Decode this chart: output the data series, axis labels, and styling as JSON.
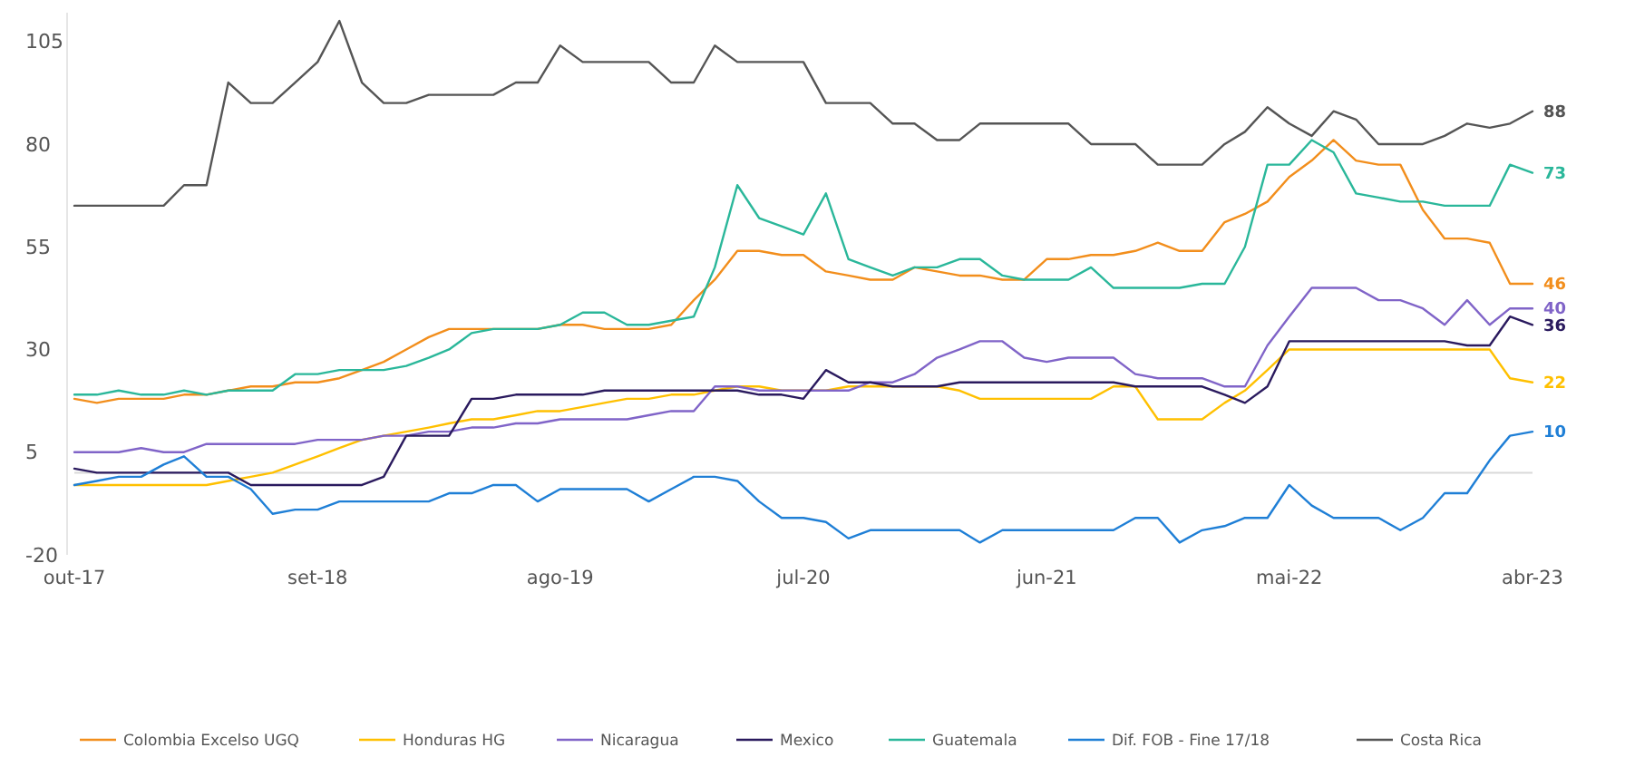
{
  "chart_data": {
    "type": "line",
    "x": [
      "2017-10",
      "2017-11",
      "2017-12",
      "2018-01",
      "2018-02",
      "2018-03",
      "2018-04",
      "2018-05",
      "2018-06",
      "2018-07",
      "2018-08",
      "2018-09",
      "2018-10",
      "2018-11",
      "2018-12",
      "2019-01",
      "2019-02",
      "2019-03",
      "2019-04",
      "2019-05",
      "2019-06",
      "2019-07",
      "2019-08",
      "2019-09",
      "2019-10",
      "2019-11",
      "2019-12",
      "2020-01",
      "2020-02",
      "2020-03",
      "2020-04",
      "2020-05",
      "2020-06",
      "2020-07",
      "2020-08",
      "2020-09",
      "2020-10",
      "2020-11",
      "2020-12",
      "2021-01",
      "2021-02",
      "2021-03",
      "2021-04",
      "2021-05",
      "2021-06",
      "2021-07",
      "2021-08",
      "2021-09",
      "2021-10",
      "2021-11",
      "2021-12",
      "2022-01",
      "2022-02",
      "2022-03",
      "2022-04",
      "2022-05",
      "2022-06",
      "2022-07",
      "2022-08",
      "2022-09",
      "2022-10",
      "2022-11",
      "2022-12",
      "2023-01",
      "2023-02",
      "2023-03",
      "2023-04"
    ],
    "xlim": [
      "2017-10",
      "2023-04"
    ],
    "xticks": [
      {
        "value": "2017-10",
        "label": "out-17"
      },
      {
        "value": "2018-09",
        "label": "set-18"
      },
      {
        "value": "2019-08",
        "label": "ago-19"
      },
      {
        "value": "2020-07",
        "label": "jul-20"
      },
      {
        "value": "2021-06",
        "label": "jun-21"
      },
      {
        "value": "2022-05",
        "label": "mai-22"
      },
      {
        "value": "2023-04",
        "label": "abr-23"
      }
    ],
    "ylim": [
      -20,
      112
    ],
    "yticks": [
      -20,
      5,
      30,
      55,
      80,
      105
    ],
    "ref_lines": [
      {
        "axis": "y",
        "value": 0,
        "color": "#d9d9d9"
      }
    ],
    "legend": "bottom",
    "grid": false,
    "series": [
      {
        "name": "Colombia Excelso UGQ",
        "color": "#f28e1c",
        "values": [
          18,
          17,
          18,
          18,
          18,
          19,
          19,
          20,
          21,
          21,
          22,
          22,
          23,
          25,
          27,
          30,
          33,
          35,
          35,
          35,
          35,
          35,
          36,
          36,
          35,
          35,
          35,
          36,
          42,
          47,
          54,
          54,
          53,
          53,
          49,
          48,
          47,
          47,
          50,
          49,
          48,
          48,
          47,
          47,
          52,
          52,
          53,
          53,
          54,
          56,
          54,
          54,
          61,
          63,
          66,
          72,
          76,
          81,
          76,
          75,
          75,
          64,
          57,
          57,
          56,
          46,
          46
        ],
        "value_labels": [
          null,
          null,
          null,
          null,
          null,
          null,
          null,
          null,
          null,
          null,
          null,
          null,
          null,
          null,
          null,
          null,
          null,
          null,
          null,
          null,
          null,
          null,
          null,
          null,
          null,
          null,
          null,
          null,
          null,
          null,
          null,
          null,
          null,
          null,
          null,
          null,
          null,
          null,
          null,
          null,
          null,
          null,
          null,
          null,
          null,
          null,
          null,
          null,
          null,
          null,
          null,
          null,
          null,
          null,
          null,
          null,
          null,
          null,
          null,
          null,
          null,
          null,
          null,
          null,
          null,
          null,
          "46"
        ]
      },
      {
        "name": "Honduras HG",
        "color": "#ffc000",
        "values": [
          -3,
          -3,
          -3,
          -3,
          -3,
          -3,
          -3,
          -2,
          -1,
          0,
          2,
          4,
          6,
          8,
          9,
          10,
          11,
          12,
          13,
          13,
          14,
          15,
          15,
          16,
          17,
          18,
          18,
          19,
          19,
          20,
          21,
          21,
          20,
          20,
          20,
          21,
          21,
          21,
          21,
          21,
          20,
          18,
          18,
          18,
          18,
          18,
          18,
          21,
          21,
          13,
          13,
          13,
          17,
          20,
          25,
          30,
          30,
          30,
          30,
          30,
          30,
          30,
          30,
          30,
          30,
          23,
          22
        ],
        "value_labels": [
          null,
          null,
          null,
          null,
          null,
          null,
          null,
          null,
          null,
          null,
          null,
          null,
          null,
          null,
          null,
          null,
          null,
          null,
          null,
          null,
          null,
          null,
          null,
          null,
          null,
          null,
          null,
          null,
          null,
          null,
          null,
          null,
          null,
          null,
          null,
          null,
          null,
          null,
          null,
          null,
          null,
          null,
          null,
          null,
          null,
          null,
          null,
          null,
          null,
          null,
          null,
          null,
          null,
          null,
          null,
          null,
          null,
          null,
          null,
          null,
          null,
          null,
          null,
          null,
          null,
          null,
          "22"
        ]
      },
      {
        "name": "Nicaragua",
        "color": "#8064c8",
        "values": [
          5,
          5,
          5,
          6,
          5,
          5,
          7,
          7,
          7,
          7,
          7,
          8,
          8,
          8,
          9,
          9,
          10,
          10,
          11,
          11,
          12,
          12,
          13,
          13,
          13,
          13,
          14,
          15,
          15,
          21,
          21,
          20,
          20,
          20,
          20,
          20,
          22,
          22,
          24,
          28,
          30,
          32,
          32,
          28,
          27,
          28,
          28,
          28,
          24,
          23,
          23,
          23,
          21,
          21,
          31,
          38,
          45,
          45,
          45,
          42,
          42,
          40,
          36,
          42,
          36,
          40,
          40
        ],
        "value_labels": [
          null,
          null,
          null,
          null,
          null,
          null,
          null,
          null,
          null,
          null,
          null,
          null,
          null,
          null,
          null,
          null,
          null,
          null,
          null,
          null,
          null,
          null,
          null,
          null,
          null,
          null,
          null,
          null,
          null,
          null,
          null,
          null,
          null,
          null,
          null,
          null,
          null,
          null,
          null,
          null,
          null,
          null,
          null,
          null,
          null,
          null,
          null,
          null,
          null,
          null,
          null,
          null,
          null,
          null,
          null,
          null,
          null,
          null,
          null,
          null,
          null,
          null,
          null,
          null,
          null,
          null,
          "40"
        ]
      },
      {
        "name": "Mexico",
        "color": "#2a1a5e",
        "values": [
          1,
          0,
          0,
          0,
          0,
          0,
          0,
          0,
          -3,
          -3,
          -3,
          -3,
          -3,
          -3,
          -1,
          9,
          9,
          9,
          18,
          18,
          19,
          19,
          19,
          19,
          20,
          20,
          20,
          20,
          20,
          20,
          20,
          19,
          19,
          18,
          25,
          22,
          22,
          21,
          21,
          21,
          22,
          22,
          22,
          22,
          22,
          22,
          22,
          22,
          21,
          21,
          21,
          21,
          19,
          17,
          21,
          32,
          32,
          32,
          32,
          32,
          32,
          32,
          32,
          31,
          31,
          38,
          36
        ],
        "value_labels": [
          null,
          null,
          null,
          null,
          null,
          null,
          null,
          null,
          null,
          null,
          null,
          null,
          null,
          null,
          null,
          null,
          null,
          null,
          null,
          null,
          null,
          null,
          null,
          null,
          null,
          null,
          null,
          null,
          null,
          null,
          null,
          null,
          null,
          null,
          null,
          null,
          null,
          null,
          null,
          null,
          null,
          null,
          null,
          null,
          null,
          null,
          null,
          null,
          null,
          null,
          null,
          null,
          null,
          null,
          null,
          null,
          null,
          null,
          null,
          null,
          null,
          null,
          null,
          null,
          null,
          null,
          "36"
        ]
      },
      {
        "name": "Guatemala",
        "color": "#2ab79a",
        "values": [
          19,
          19,
          20,
          19,
          19,
          20,
          19,
          20,
          20,
          20,
          24,
          24,
          25,
          25,
          25,
          26,
          28,
          30,
          34,
          35,
          35,
          35,
          36,
          39,
          39,
          36,
          36,
          37,
          38,
          50,
          70,
          62,
          60,
          58,
          68,
          52,
          50,
          48,
          50,
          50,
          52,
          52,
          48,
          47,
          47,
          47,
          50,
          45,
          45,
          45,
          45,
          46,
          46,
          55,
          75,
          75,
          81,
          78,
          68,
          67,
          66,
          66,
          65,
          65,
          65,
          75,
          73
        ],
        "value_labels": [
          null,
          null,
          null,
          null,
          null,
          null,
          null,
          null,
          null,
          null,
          null,
          null,
          null,
          null,
          null,
          null,
          null,
          null,
          null,
          null,
          null,
          null,
          null,
          null,
          null,
          null,
          null,
          null,
          null,
          null,
          null,
          null,
          null,
          null,
          null,
          null,
          null,
          null,
          null,
          null,
          null,
          null,
          null,
          null,
          null,
          null,
          null,
          null,
          null,
          null,
          null,
          null,
          null,
          null,
          null,
          null,
          null,
          null,
          null,
          null,
          null,
          null,
          null,
          null,
          null,
          null,
          "73"
        ]
      },
      {
        "name": "Dif. FOB - Fine 17/18",
        "color": "#1f7fd6",
        "values": [
          -3,
          -2,
          -1,
          -1,
          2,
          4,
          -1,
          -1,
          -4,
          -10,
          -9,
          -9,
          -7,
          -7,
          -7,
          -7,
          -7,
          -5,
          -5,
          -3,
          -3,
          -7,
          -4,
          -4,
          -4,
          -4,
          -7,
          -4,
          -1,
          -1,
          -2,
          -7,
          -11,
          -11,
          -12,
          -16,
          -14,
          -14,
          -14,
          -14,
          -14,
          -17,
          -14,
          -14,
          -14,
          -14,
          -14,
          -14,
          -11,
          -11,
          -17,
          -14,
          -13,
          -11,
          -11,
          -3,
          -8,
          -11,
          -11,
          -11,
          -14,
          -11,
          -5,
          -5,
          3,
          9,
          10
        ],
        "value_labels": [
          null,
          null,
          null,
          null,
          null,
          null,
          null,
          null,
          null,
          null,
          null,
          null,
          null,
          null,
          null,
          null,
          null,
          null,
          null,
          null,
          null,
          null,
          null,
          null,
          null,
          null,
          null,
          null,
          null,
          null,
          null,
          null,
          null,
          null,
          null,
          null,
          null,
          null,
          null,
          null,
          null,
          null,
          null,
          null,
          null,
          null,
          null,
          null,
          null,
          null,
          null,
          null,
          null,
          null,
          null,
          null,
          null,
          null,
          null,
          null,
          null,
          null,
          null,
          null,
          null,
          null,
          "10"
        ]
      },
      {
        "name": "Costa Rica",
        "color": "#555555",
        "values": [
          65,
          65,
          65,
          65,
          65,
          70,
          70,
          95,
          90,
          90,
          95,
          100,
          110,
          95,
          90,
          90,
          92,
          92,
          92,
          92,
          95,
          95,
          104,
          100,
          100,
          100,
          100,
          95,
          95,
          104,
          100,
          100,
          100,
          100,
          90,
          90,
          90,
          85,
          85,
          81,
          81,
          85,
          85,
          85,
          85,
          85,
          80,
          80,
          80,
          75,
          75,
          75,
          80,
          83,
          89,
          85,
          82,
          88,
          86,
          80,
          80,
          80,
          82,
          85,
          84,
          85,
          88
        ],
        "value_labels": [
          null,
          null,
          null,
          null,
          null,
          null,
          null,
          null,
          null,
          null,
          null,
          null,
          null,
          null,
          null,
          null,
          null,
          null,
          null,
          null,
          null,
          null,
          null,
          null,
          null,
          null,
          null,
          null,
          null,
          null,
          null,
          null,
          null,
          null,
          null,
          null,
          null,
          null,
          null,
          null,
          null,
          null,
          null,
          null,
          null,
          null,
          null,
          null,
          null,
          null,
          null,
          null,
          null,
          null,
          null,
          null,
          null,
          null,
          null,
          null,
          null,
          null,
          null,
          null,
          null,
          null,
          "88"
        ]
      }
    ]
  }
}
